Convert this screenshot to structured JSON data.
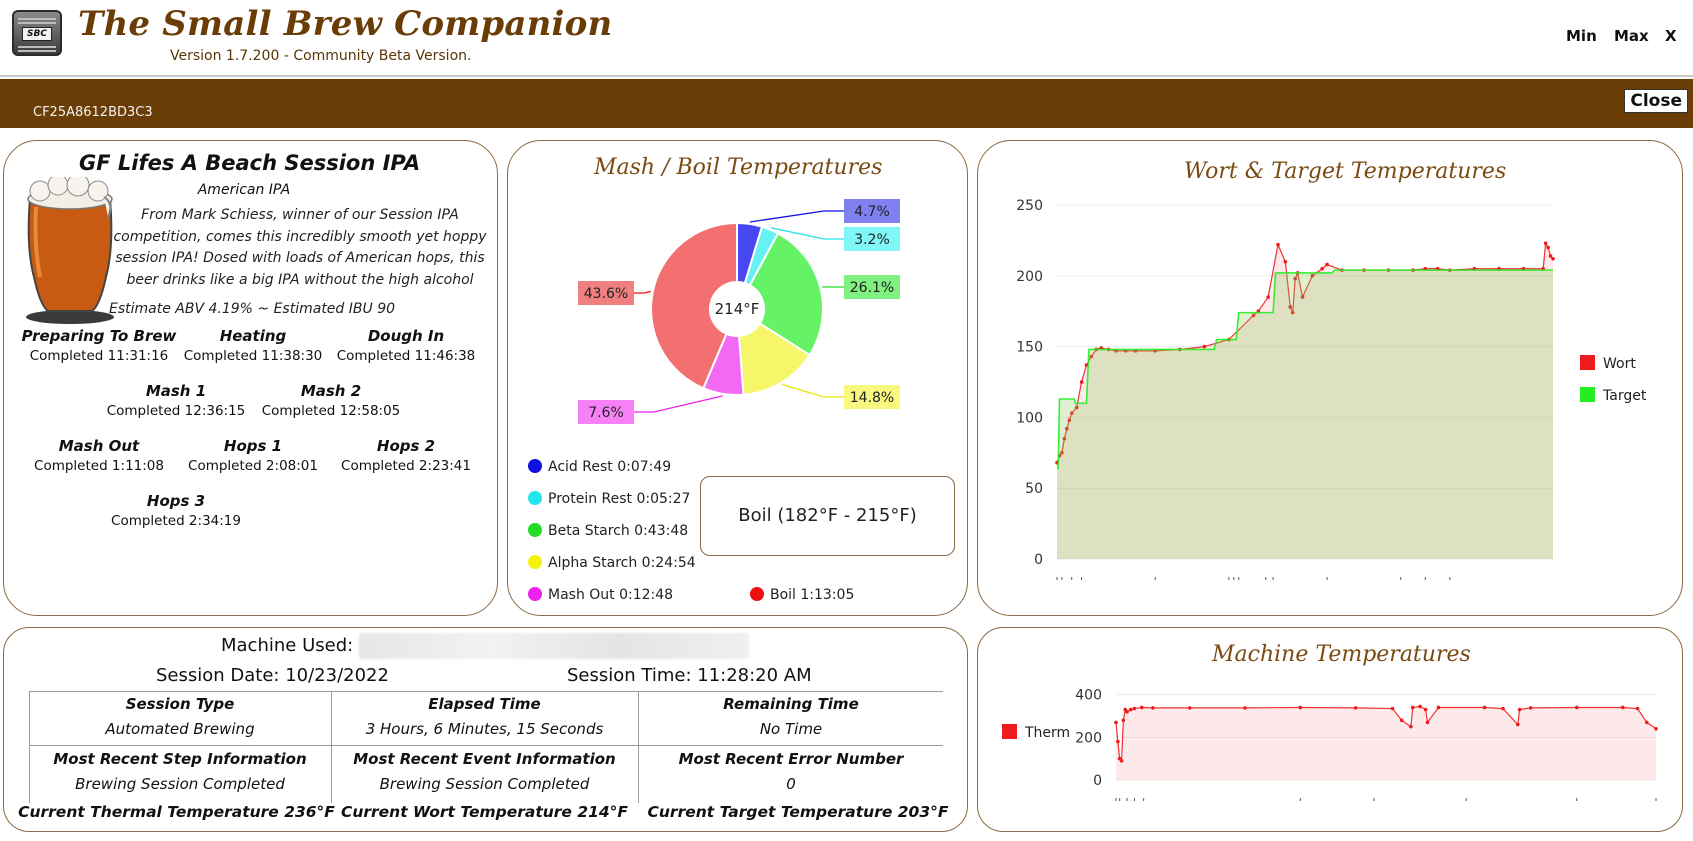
{
  "app": {
    "title": "The Small Brew Companion",
    "version": "Version 1.7.200 - Community Beta Version.",
    "logo_text": "SBC",
    "window_buttons": {
      "min": "Min",
      "max": "Max",
      "close": "X"
    }
  },
  "session_bar": {
    "session_id": "CF25A8612BD3C3",
    "close_label": "Close"
  },
  "recipe": {
    "name": "GF Lifes A Beach Session IPA",
    "style": "American IPA",
    "description": "From Mark Schiess, winner of our Session IPA competition, comes this incredibly smooth yet hoppy session IPA! Dosed with loads of American hops, this beer drinks like a big IPA without the high alcohol",
    "estimates": "Estimate ABV 4.19%  ~  Estimated IBU 90",
    "steps": [
      {
        "name": "Preparing To Brew",
        "time": "Completed 11:31:16"
      },
      {
        "name": "Heating",
        "time": "Completed 11:38:30"
      },
      {
        "name": "Dough In",
        "time": "Completed 11:46:38"
      },
      {
        "name": "Mash 1",
        "time": "Completed 12:36:15"
      },
      {
        "name": "Mash 2",
        "time": "Completed 12:58:05"
      },
      {
        "name": "Mash Out",
        "time": "Completed 1:11:08"
      },
      {
        "name": "Hops 1",
        "time": "Completed 2:08:01"
      },
      {
        "name": "Hops 2",
        "time": "Completed 2:23:41"
      },
      {
        "name": "Hops 3",
        "time": "Completed 2:34:19"
      }
    ]
  },
  "mash_boil": {
    "title": "Mash / Boil Temperatures",
    "center_label": "214°F",
    "current_phase": "Boil (182°F - 215°F)",
    "legend": [
      {
        "label": "Acid Rest 0:07:49",
        "color": "#1010e0"
      },
      {
        "label": "Protein Rest 0:05:27",
        "color": "#22e6ee"
      },
      {
        "label": "Beta Starch 0:43:48",
        "color": "#22dd22"
      },
      {
        "label": "Alpha Starch 0:24:54",
        "color": "#f2f20a"
      },
      {
        "label": "Mash Out 0:12:48",
        "color": "#ee22ee"
      },
      {
        "label": "Boil 1:13:05",
        "color": "#ee1010"
      }
    ]
  },
  "chart_data": [
    {
      "type": "pie",
      "title": "Mash / Boil Temperatures",
      "categories": [
        "Acid Rest",
        "Protein Rest",
        "Beta Starch",
        "Alpha Starch",
        "Mash Out",
        "Boil"
      ],
      "values": [
        4.7,
        3.2,
        26.1,
        14.8,
        7.6,
        43.6
      ],
      "labels": [
        "4.7%",
        "3.2%",
        "26.1%",
        "14.8%",
        "7.6%",
        "43.6%"
      ],
      "colors": [
        "#4848f2",
        "#66f2f2",
        "#66f266",
        "#f6f66a",
        "#f26af2",
        "#f27070"
      ],
      "label_colors": [
        "#8080f0",
        "#80f6f6",
        "#80f080",
        "#f8f880",
        "#f680f6",
        "#f08080"
      ]
    },
    {
      "type": "line",
      "title": "Wort & Target Temperatures",
      "ylim": [
        0,
        250
      ],
      "yticks": [
        0,
        50,
        100,
        150,
        200,
        250
      ],
      "series": [
        {
          "name": "Wort",
          "color": "#ee1c1c",
          "x": [
            0,
            1,
            2,
            3,
            4,
            5,
            6,
            8,
            10,
            12,
            14,
            16,
            18,
            21,
            24,
            28,
            32,
            40,
            50,
            60,
            70,
            80,
            82,
            86,
            90,
            93,
            95,
            96,
            97,
            98,
            100,
            104,
            108,
            110,
            116,
            125,
            135,
            145,
            150,
            155,
            160,
            170,
            180,
            190,
            198,
            199,
            200,
            201,
            202
          ],
          "y": [
            68,
            73,
            75,
            85,
            92,
            98,
            103,
            107,
            125,
            137,
            143,
            148,
            149,
            148,
            147,
            147,
            147,
            147,
            148,
            150,
            155,
            172,
            175,
            185,
            222,
            210,
            178,
            174,
            198,
            202,
            185,
            200,
            205,
            208,
            204,
            204,
            204,
            204,
            205,
            205,
            204,
            205,
            205,
            205,
            205,
            223,
            220,
            214,
            212
          ]
        },
        {
          "name": "Target",
          "color": "#22ee22",
          "x": [
            0,
            0.5,
            1,
            7,
            7.5,
            12,
            13,
            50,
            51,
            64,
            65,
            73,
            74,
            88,
            89,
            94,
            94.5,
            112,
            113,
            202
          ],
          "y": [
            64,
            64,
            113,
            113,
            110,
            110,
            148,
            148,
            148,
            148,
            155,
            155,
            174,
            174,
            202,
            202,
            202,
            202,
            204,
            204
          ]
        }
      ]
    },
    {
      "type": "line",
      "title": "Machine Temperatures",
      "ylim": [
        0,
        450
      ],
      "yticks": [
        0,
        200,
        400
      ],
      "series": [
        {
          "name": "Therm",
          "color": "#ee1c1c",
          "x": [
            0,
            1,
            2,
            3,
            4,
            5,
            6,
            8,
            10,
            14,
            20,
            40,
            70,
            100,
            130,
            150,
            155,
            160,
            161,
            165,
            168,
            169,
            175,
            200,
            210,
            218,
            219,
            225,
            250,
            275,
            283,
            288,
            293
          ],
          "y": [
            270,
            180,
            100,
            90,
            280,
            330,
            320,
            330,
            335,
            340,
            338,
            338,
            338,
            340,
            338,
            335,
            280,
            250,
            340,
            345,
            330,
            270,
            340,
            340,
            335,
            260,
            330,
            338,
            340,
            340,
            335,
            270,
            240
          ]
        }
      ]
    }
  ],
  "wort_panel": {
    "title": "Wort & Target Temperatures",
    "legend": [
      "Wort",
      "Target"
    ]
  },
  "machine_panel": {
    "title": "Machine Temperatures",
    "legend": [
      "Therm"
    ]
  },
  "session_info": {
    "machine_label": "Machine Used:",
    "session_date": "Session Date: 10/23/2022",
    "session_time": "Session Time: 11:28:20 AM",
    "grid": [
      [
        {
          "head": "Session Type",
          "value": "Automated Brewing"
        },
        {
          "head": "Elapsed Time",
          "value": "3 Hours, 6 Minutes, 15 Seconds"
        },
        {
          "head": "Remaining Time",
          "value": "No Time"
        }
      ],
      [
        {
          "head": "Most Recent Step Information",
          "value": "Brewing Session Completed"
        },
        {
          "head": "Most Recent Event Information",
          "value": "Brewing Session Completed"
        },
        {
          "head": "Most Recent Error Number",
          "value": "0"
        }
      ]
    ],
    "current": [
      "Current Thermal Temperature 236°F",
      "Current Wort Temperature 214°F",
      "Current Target Temperature 203°F"
    ]
  }
}
